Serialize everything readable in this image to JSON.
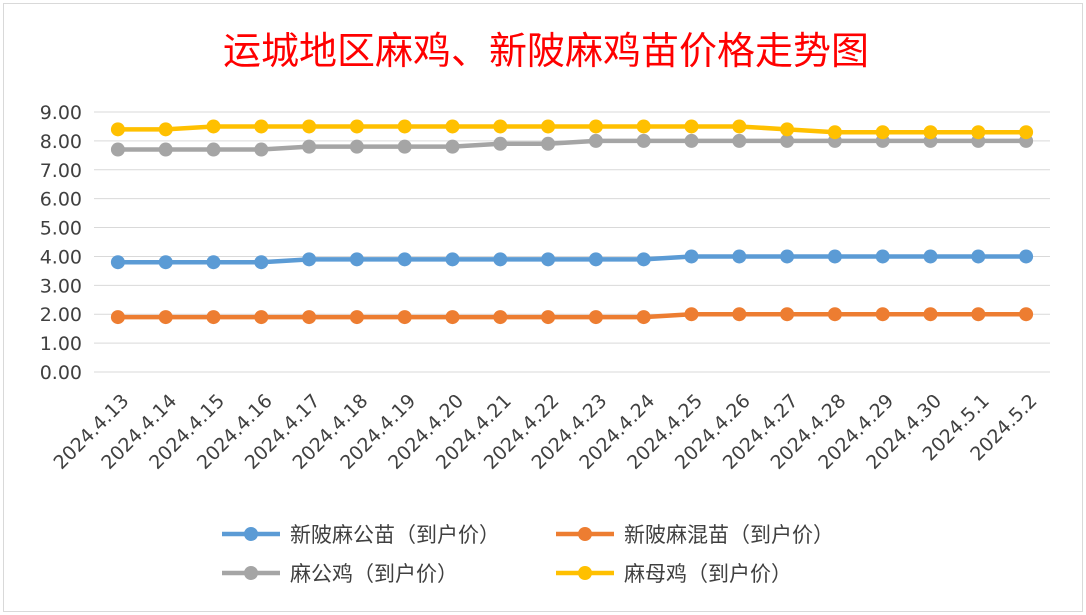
{
  "chart_data": {
    "type": "line",
    "title": "运城地区麻鸡、新陂麻鸡苗价格走势图",
    "xlabel": "",
    "ylabel": "",
    "ylim": [
      0,
      9
    ],
    "yticks": [
      "0.00",
      "1.00",
      "2.00",
      "3.00",
      "4.00",
      "5.00",
      "6.00",
      "7.00",
      "8.00",
      "9.00"
    ],
    "grid": true,
    "legend_position": "bottom",
    "categories": [
      "2024.4.13",
      "2024.4.14",
      "2024.4.15",
      "2024.4.16",
      "2024.4.17",
      "2024.4.18",
      "2024.4.19",
      "2024.4.20",
      "2024.4.21",
      "2024.4.22",
      "2024.4.23",
      "2024.4.24",
      "2024.4.25",
      "2024.4.26",
      "2024.4.27",
      "2024.4.28",
      "2024.4.29",
      "2024.4.30",
      "2024.5.1",
      "2024.5.2"
    ],
    "series": [
      {
        "name": "新陂麻公苗（到户价）",
        "color": "#5b9bd5",
        "values": [
          3.8,
          3.8,
          3.8,
          3.8,
          3.9,
          3.9,
          3.9,
          3.9,
          3.9,
          3.9,
          3.9,
          3.9,
          4.0,
          4.0,
          4.0,
          4.0,
          4.0,
          4.0,
          4.0,
          4.0
        ]
      },
      {
        "name": "新陂麻混苗（到户价）",
        "color": "#ed7d31",
        "values": [
          1.9,
          1.9,
          1.9,
          1.9,
          1.9,
          1.9,
          1.9,
          1.9,
          1.9,
          1.9,
          1.9,
          1.9,
          2.0,
          2.0,
          2.0,
          2.0,
          2.0,
          2.0,
          2.0,
          2.0
        ]
      },
      {
        "name": "麻公鸡（到户价）",
        "color": "#a5a5a5",
        "values": [
          7.7,
          7.7,
          7.7,
          7.7,
          7.8,
          7.8,
          7.8,
          7.8,
          7.9,
          7.9,
          8.0,
          8.0,
          8.0,
          8.0,
          8.0,
          8.0,
          8.0,
          8.0,
          8.0,
          8.0
        ]
      },
      {
        "name": "麻母鸡（到户价）",
        "color": "#ffc000",
        "values": [
          8.4,
          8.4,
          8.5,
          8.5,
          8.5,
          8.5,
          8.5,
          8.5,
          8.5,
          8.5,
          8.5,
          8.5,
          8.5,
          8.5,
          8.4,
          8.3,
          8.3,
          8.3,
          8.3,
          8.3
        ]
      }
    ]
  }
}
